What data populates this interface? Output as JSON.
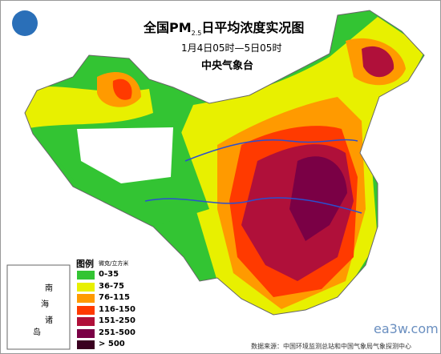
{
  "header": {
    "title_prefix": "全国PM",
    "title_sub": "2.5",
    "title_suffix": "日平均浓度实况图",
    "period": "1月4日05时—5日05时",
    "agency": "中央气象台"
  },
  "legend": {
    "title": "图例",
    "unit": "微克/立方米",
    "items": [
      {
        "label": "0-35",
        "color": "#33c433"
      },
      {
        "label": "36-75",
        "color": "#e8f000"
      },
      {
        "label": "76-115",
        "color": "#ff9a00"
      },
      {
        "label": "116-150",
        "color": "#ff3a00"
      },
      {
        "label": "151-250",
        "color": "#b0103a"
      },
      {
        "label": "251-500",
        "color": "#7a0045"
      },
      {
        "label": "> 500",
        "color": "#3a0020"
      }
    ]
  },
  "inset": {
    "labels": [
      "南",
      "海",
      "诸",
      "岛"
    ]
  },
  "footer": {
    "source": "数据来源：中国环境监测总站和中国气象局气象探测中心",
    "watermark": "ea3w.com"
  }
}
